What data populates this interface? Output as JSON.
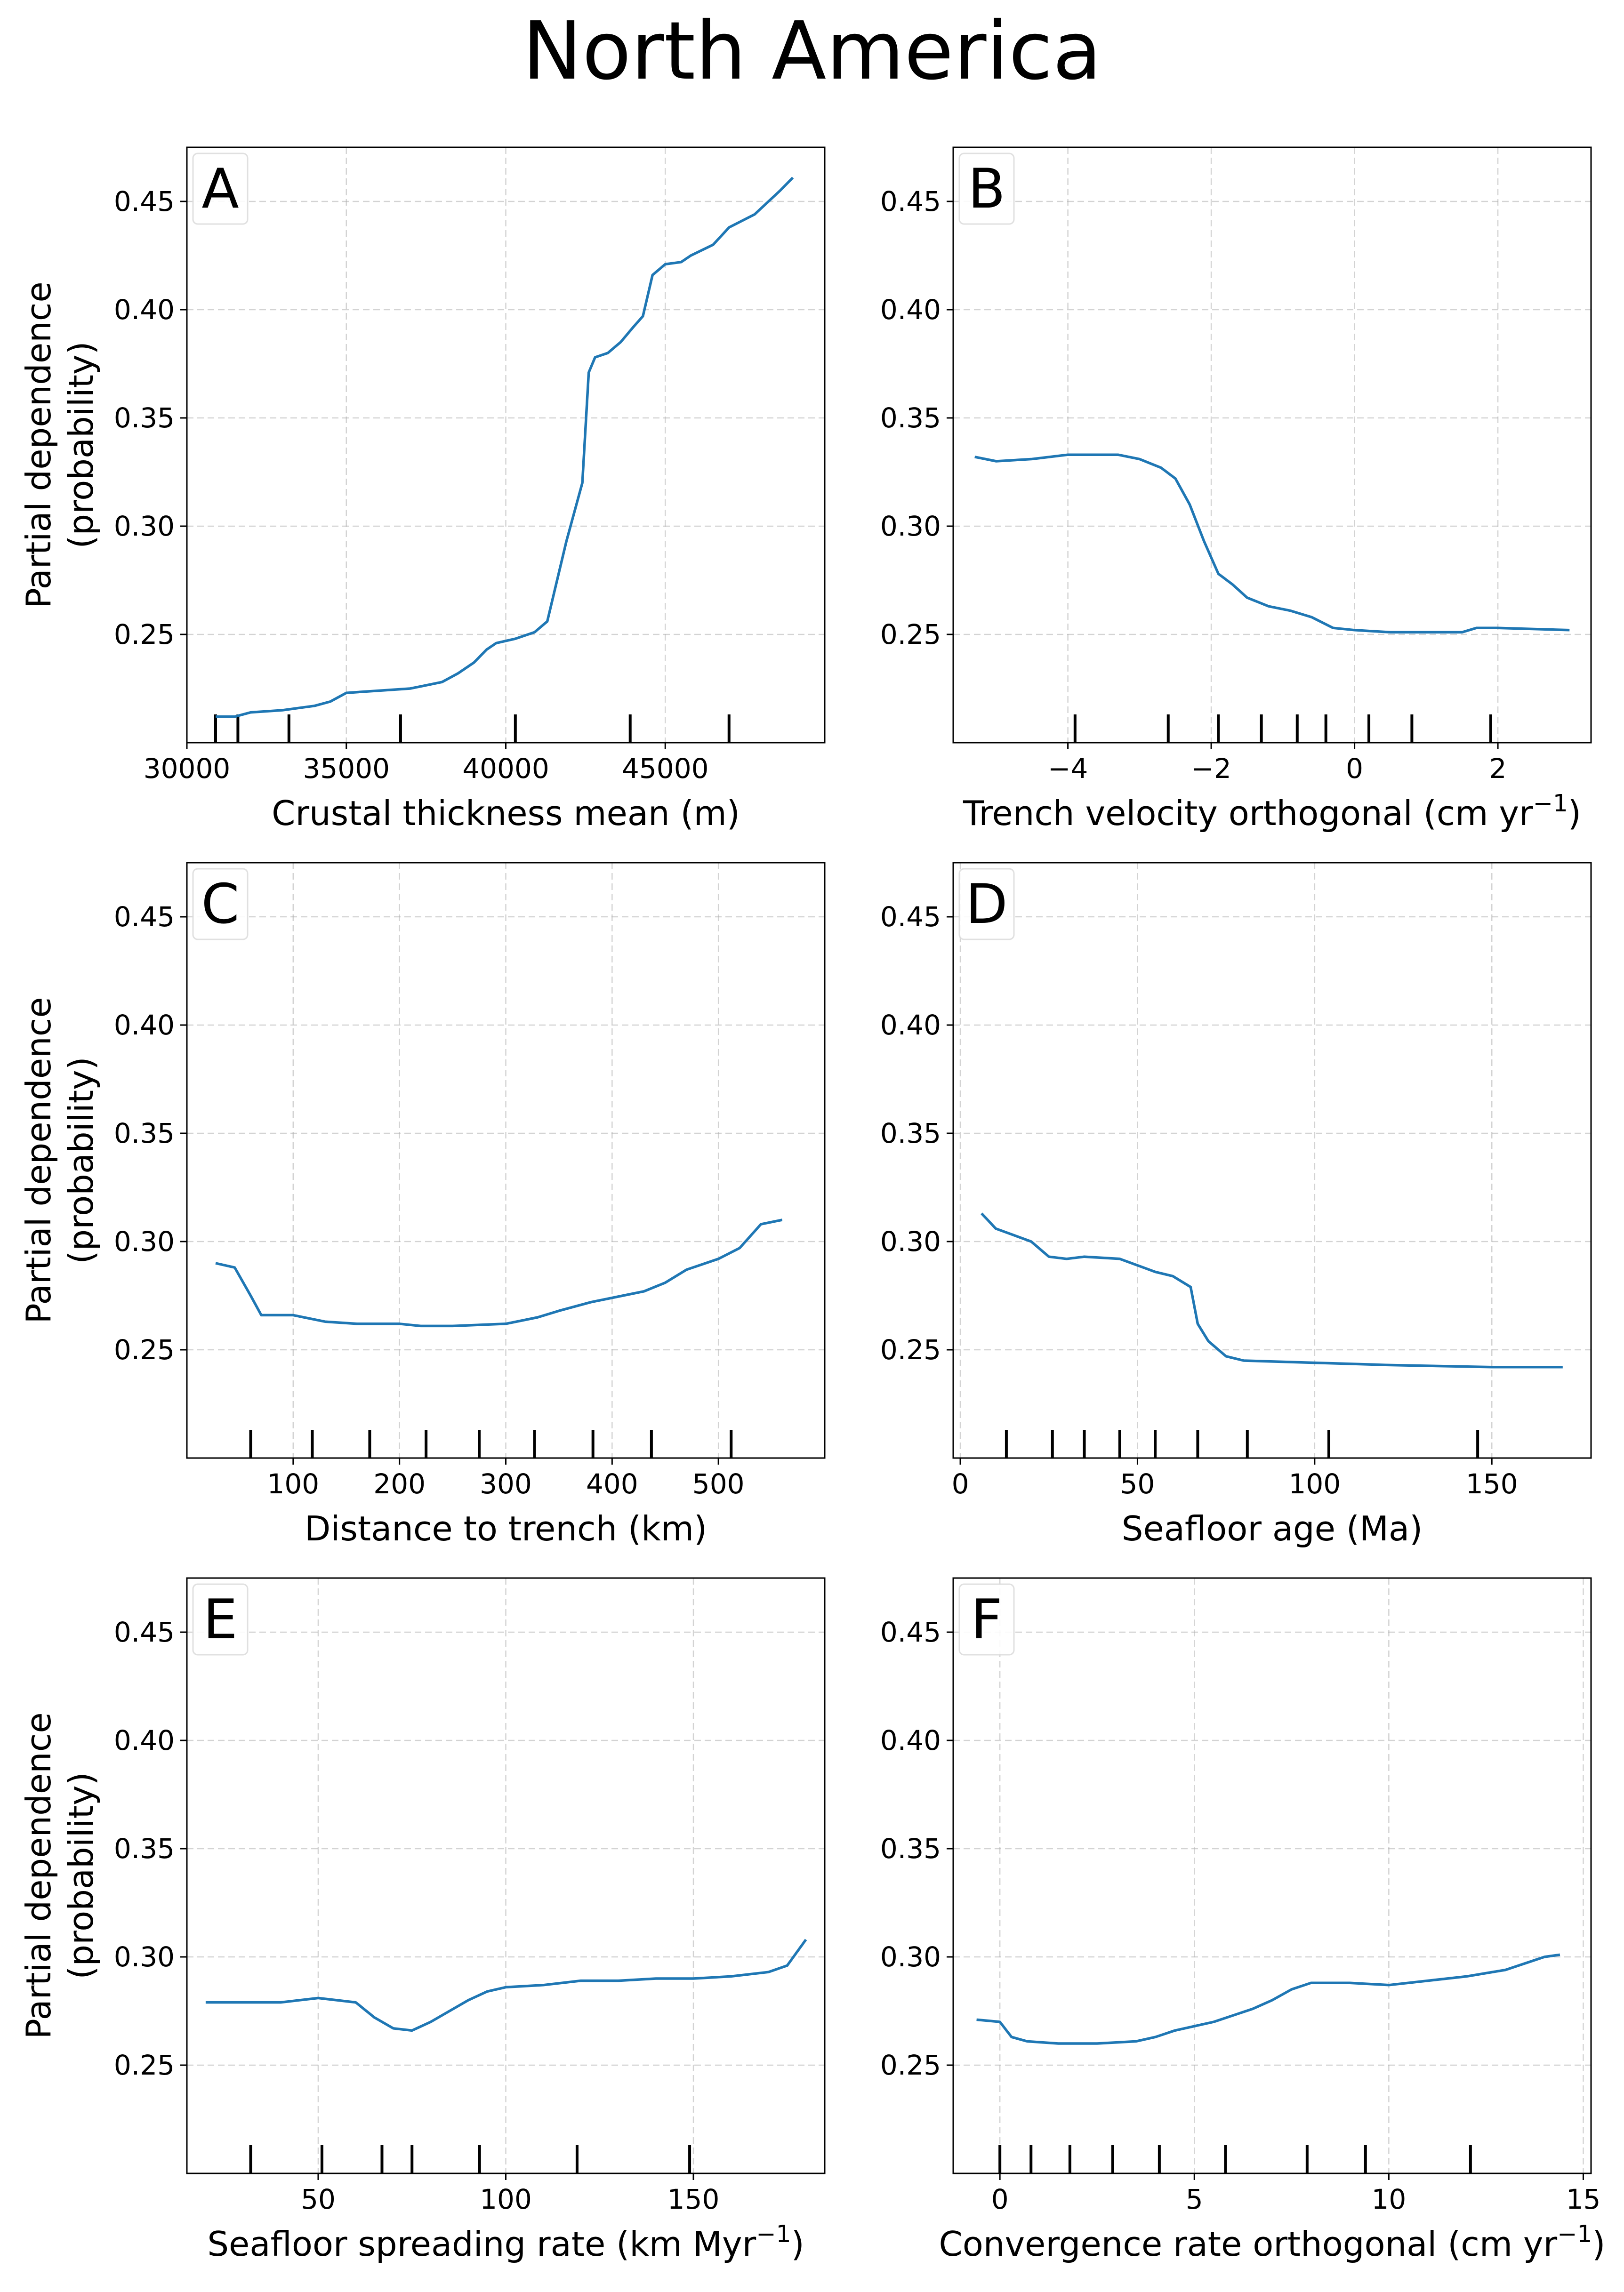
{
  "title": "North America",
  "colors": {
    "line": "#1f77b4",
    "grid": "#b0b0b0",
    "axis": "#000000",
    "rug": "#000000"
  },
  "chart_data": [
    {
      "type": "line",
      "panel": "A",
      "xlabel": "Crustal thickness mean (m)",
      "ylabel": "Partial dependence\n(probability)",
      "xlim": [
        30000,
        50000
      ],
      "ylim": [
        0.2,
        0.475
      ],
      "xticks": [
        30000,
        35000,
        40000,
        45000
      ],
      "xticklabels": [
        "30000",
        "35000",
        "40000",
        "45000"
      ],
      "yticks": [
        0.25,
        0.3,
        0.35,
        0.4,
        0.45
      ],
      "yticklabels": [
        "0.25",
        "0.30",
        "0.35",
        "0.40",
        "0.45"
      ],
      "grid": true,
      "x": [
        30900,
        31500,
        32000,
        33000,
        34000,
        34500,
        35000,
        36000,
        37000,
        38000,
        38500,
        39000,
        39400,
        39700,
        40300,
        40900,
        41300,
        41900,
        42400,
        42600,
        42800,
        43200,
        43600,
        44000,
        44300,
        44600,
        45000,
        45500,
        45800,
        46500,
        47000,
        47800,
        48600,
        49000
      ],
      "y": [
        0.212,
        0.212,
        0.214,
        0.215,
        0.217,
        0.219,
        0.223,
        0.224,
        0.225,
        0.228,
        0.232,
        0.237,
        0.243,
        0.246,
        0.248,
        0.251,
        0.256,
        0.293,
        0.32,
        0.371,
        0.378,
        0.38,
        0.385,
        0.392,
        0.397,
        0.416,
        0.421,
        0.422,
        0.425,
        0.43,
        0.438,
        0.444,
        0.455,
        0.461
      ],
      "rug": [
        30900,
        31600,
        33200,
        36700,
        40300,
        43900,
        47000
      ]
    },
    {
      "type": "line",
      "panel": "B",
      "xlabel": "Trench velocity orthogonal (cm yr⁻¹)",
      "ylabel": "",
      "xlim": [
        -5.6,
        3.3
      ],
      "ylim": [
        0.2,
        0.475
      ],
      "xticks": [
        -4,
        -2,
        0,
        2
      ],
      "xticklabels": [
        "−4",
        "−2",
        "0",
        "2"
      ],
      "yticks": [
        0.25,
        0.3,
        0.35,
        0.4,
        0.45
      ],
      "yticklabels": [
        "0.25",
        "0.30",
        "0.35",
        "0.40",
        "0.45"
      ],
      "grid": true,
      "x": [
        -5.3,
        -5.0,
        -4.5,
        -4.0,
        -3.7,
        -3.3,
        -3.0,
        -2.7,
        -2.5,
        -2.3,
        -2.1,
        -1.9,
        -1.7,
        -1.5,
        -1.2,
        -0.9,
        -0.6,
        -0.3,
        0.0,
        0.5,
        1.0,
        1.5,
        1.7,
        2.0,
        3.0
      ],
      "y": [
        0.332,
        0.33,
        0.331,
        0.333,
        0.333,
        0.333,
        0.331,
        0.327,
        0.322,
        0.31,
        0.293,
        0.278,
        0.273,
        0.267,
        0.263,
        0.261,
        0.258,
        0.253,
        0.252,
        0.251,
        0.251,
        0.251,
        0.253,
        0.253,
        0.252
      ],
      "rug": [
        -3.9,
        -2.6,
        -1.9,
        -1.3,
        -0.8,
        -0.4,
        0.2,
        0.8,
        1.9
      ]
    },
    {
      "type": "line",
      "panel": "C",
      "xlabel": "Distance to trench (km)",
      "ylabel": "Partial dependence\n(probability)",
      "xlim": [
        0,
        600
      ],
      "ylim": [
        0.2,
        0.475
      ],
      "xticks": [
        100,
        200,
        300,
        400,
        500
      ],
      "xticklabels": [
        "100",
        "200",
        "300",
        "400",
        "500"
      ],
      "yticks": [
        0.25,
        0.3,
        0.35,
        0.4,
        0.45
      ],
      "yticklabels": [
        "0.25",
        "0.30",
        "0.35",
        "0.40",
        "0.45"
      ],
      "grid": true,
      "x": [
        27,
        45,
        60,
        70,
        100,
        130,
        160,
        200,
        220,
        250,
        300,
        330,
        350,
        380,
        410,
        430,
        450,
        470,
        500,
        520,
        540,
        560
      ],
      "y": [
        0.29,
        0.288,
        0.275,
        0.266,
        0.266,
        0.263,
        0.262,
        0.262,
        0.261,
        0.261,
        0.262,
        0.265,
        0.268,
        0.272,
        0.275,
        0.277,
        0.281,
        0.287,
        0.292,
        0.297,
        0.308,
        0.31
      ],
      "rug": [
        60,
        118,
        172,
        225,
        275,
        327,
        382,
        437,
        512
      ]
    },
    {
      "type": "line",
      "panel": "D",
      "xlabel": "Seafloor age (Ma)",
      "ylabel": "",
      "xlim": [
        -2,
        178
      ],
      "ylim": [
        0.2,
        0.475
      ],
      "xticks": [
        0,
        50,
        100,
        150
      ],
      "xticklabels": [
        "0",
        "50",
        "100",
        "150"
      ],
      "yticks": [
        0.25,
        0.3,
        0.35,
        0.4,
        0.45
      ],
      "yticklabels": [
        "0.25",
        "0.30",
        "0.35",
        "0.40",
        "0.45"
      ],
      "grid": true,
      "x": [
        6,
        10,
        15,
        20,
        25,
        30,
        35,
        45,
        50,
        55,
        60,
        65,
        67,
        70,
        75,
        80,
        100,
        120,
        150,
        170
      ],
      "y": [
        0.313,
        0.306,
        0.303,
        0.3,
        0.293,
        0.292,
        0.293,
        0.292,
        0.289,
        0.286,
        0.284,
        0.279,
        0.262,
        0.254,
        0.247,
        0.245,
        0.244,
        0.243,
        0.242,
        0.242
      ],
      "rug": [
        13,
        26,
        35,
        45,
        55,
        67,
        81,
        104,
        146
      ]
    },
    {
      "type": "line",
      "panel": "E",
      "xlabel": "Seafloor spreading rate (km Myr⁻¹)",
      "ylabel": "Partial dependence\n(probability)",
      "xlim": [
        15,
        185
      ],
      "ylim": [
        0.2,
        0.475
      ],
      "xticks": [
        50,
        100,
        150
      ],
      "xticklabels": [
        "50",
        "100",
        "150"
      ],
      "yticks": [
        0.25,
        0.3,
        0.35,
        0.4,
        0.45
      ],
      "yticklabels": [
        "0.25",
        "0.30",
        "0.35",
        "0.40",
        "0.45"
      ],
      "grid": true,
      "x": [
        20,
        30,
        40,
        50,
        60,
        65,
        70,
        75,
        80,
        85,
        90,
        95,
        100,
        110,
        120,
        130,
        140,
        150,
        160,
        170,
        175,
        180
      ],
      "y": [
        0.279,
        0.279,
        0.279,
        0.281,
        0.279,
        0.272,
        0.267,
        0.266,
        0.27,
        0.275,
        0.28,
        0.284,
        0.286,
        0.287,
        0.289,
        0.289,
        0.29,
        0.29,
        0.291,
        0.293,
        0.296,
        0.308
      ],
      "rug": [
        32,
        51,
        67,
        75,
        93,
        119,
        149
      ]
    },
    {
      "type": "line",
      "panel": "F",
      "xlabel": "Convergence rate orthogonal (cm yr⁻¹)",
      "ylabel": "",
      "xlim": [
        -1.2,
        15.2
      ],
      "ylim": [
        0.2,
        0.475
      ],
      "xticks": [
        0,
        5,
        10,
        15
      ],
      "xticklabels": [
        "0",
        "5",
        "10",
        "15"
      ],
      "yticks": [
        0.25,
        0.3,
        0.35,
        0.4,
        0.45
      ],
      "yticklabels": [
        "0.25",
        "0.30",
        "0.35",
        "0.40",
        "0.45"
      ],
      "grid": true,
      "x": [
        -0.6,
        0.0,
        0.3,
        0.7,
        1.5,
        2.5,
        3.5,
        4.0,
        4.5,
        5.0,
        5.5,
        6.0,
        6.5,
        7.0,
        7.5,
        8.0,
        9.0,
        10.0,
        11.0,
        12.0,
        13.0,
        14.0,
        14.4
      ],
      "y": [
        0.271,
        0.27,
        0.263,
        0.261,
        0.26,
        0.26,
        0.261,
        0.263,
        0.266,
        0.268,
        0.27,
        0.273,
        0.276,
        0.28,
        0.285,
        0.288,
        0.288,
        0.287,
        0.289,
        0.291,
        0.294,
        0.3,
        0.301
      ],
      "rug": [
        0.0,
        0.8,
        1.8,
        2.9,
        4.1,
        5.8,
        7.9,
        9.4,
        12.1
      ]
    }
  ]
}
